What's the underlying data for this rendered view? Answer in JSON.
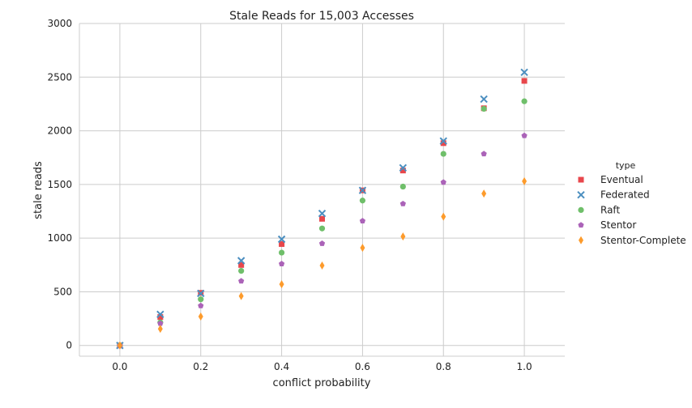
{
  "chart_data": {
    "type": "scatter",
    "title": "Stale Reads for 15,003 Accesses",
    "xlabel": "conflict probability",
    "ylabel": "stale reads",
    "xlim": [
      -0.1,
      1.1
    ],
    "ylim": [
      -100,
      3000
    ],
    "xticks": [
      0.0,
      0.2,
      0.4,
      0.6,
      0.8,
      1.0
    ],
    "xtick_labels": [
      "0.0",
      "0.2",
      "0.4",
      "0.6",
      "0.8",
      "1.0"
    ],
    "yticks": [
      0,
      500,
      1000,
      1500,
      2000,
      2500,
      3000
    ],
    "ytick_labels": [
      "0",
      "500",
      "1000",
      "1500",
      "2000",
      "2500",
      "3000"
    ],
    "grid": true,
    "legend_title": "type",
    "legend_position": "right",
    "x": [
      0.0,
      0.1,
      0.2,
      0.3,
      0.4,
      0.5,
      0.6,
      0.7,
      0.8,
      0.9,
      1.0
    ],
    "series": [
      {
        "name": "Eventual",
        "marker": "square",
        "color": "#e8474c",
        "values": [
          0,
          265,
          490,
          750,
          945,
          1180,
          1445,
          1630,
          1885,
          2210,
          2465
        ]
      },
      {
        "name": "Federated",
        "marker": "x",
        "color": "#4c8fc0",
        "values": [
          0,
          290,
          485,
          790,
          990,
          1230,
          1445,
          1655,
          1905,
          2295,
          2545
        ]
      },
      {
        "name": "Raft",
        "marker": "circle",
        "color": "#6fbf6a",
        "values": [
          0,
          215,
          430,
          695,
          865,
          1090,
          1350,
          1480,
          1785,
          2205,
          2275
        ]
      },
      {
        "name": "Stentor",
        "marker": "pentagon",
        "color": "#ab63b8",
        "values": [
          0,
          205,
          370,
          600,
          760,
          950,
          1160,
          1320,
          1520,
          1785,
          1955
        ]
      },
      {
        "name": "Stentor-Complete",
        "marker": "diamond",
        "color": "#fd9b2c",
        "values": [
          0,
          155,
          270,
          460,
          570,
          745,
          910,
          1015,
          1200,
          1415,
          1530
        ]
      }
    ]
  }
}
